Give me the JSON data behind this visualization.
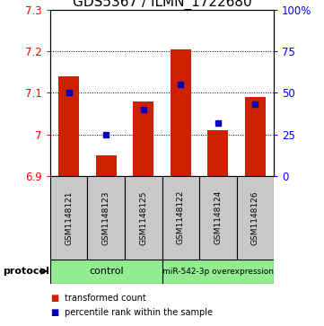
{
  "title": "GDS5367 / ILMN_1722680",
  "samples": [
    "GSM1148121",
    "GSM1148123",
    "GSM1148125",
    "GSM1148122",
    "GSM1148124",
    "GSM1148126"
  ],
  "red_values": [
    7.14,
    6.95,
    7.08,
    7.205,
    7.01,
    7.09
  ],
  "blue_values": [
    50,
    25,
    40,
    55,
    32,
    43
  ],
  "ylim_left": [
    6.9,
    7.3
  ],
  "ylim_right": [
    0,
    100
  ],
  "yticks_left": [
    6.9,
    7.0,
    7.1,
    7.2,
    7.3
  ],
  "ytick_labels_left": [
    "6.9",
    "7",
    "7.1",
    "7.2",
    "7.3"
  ],
  "yticks_right": [
    0,
    25,
    50,
    75,
    100
  ],
  "ytick_labels_right": [
    "0",
    "25",
    "50",
    "75",
    "100%"
  ],
  "bar_bottom": 6.9,
  "control_label": "control",
  "mir_label": "miR-542-3p overexpression",
  "protocol_label": "protocol",
  "legend_red": "transformed count",
  "legend_blue": "percentile rank within the sample",
  "bar_color": "#CC2200",
  "dot_color": "#0000BB",
  "grid_color": "#000000",
  "title_fontsize": 11,
  "tick_fontsize": 8.5,
  "bar_width": 0.55,
  "sample_box_color": "#C8C8C8",
  "group_box_color": "#90EE90"
}
